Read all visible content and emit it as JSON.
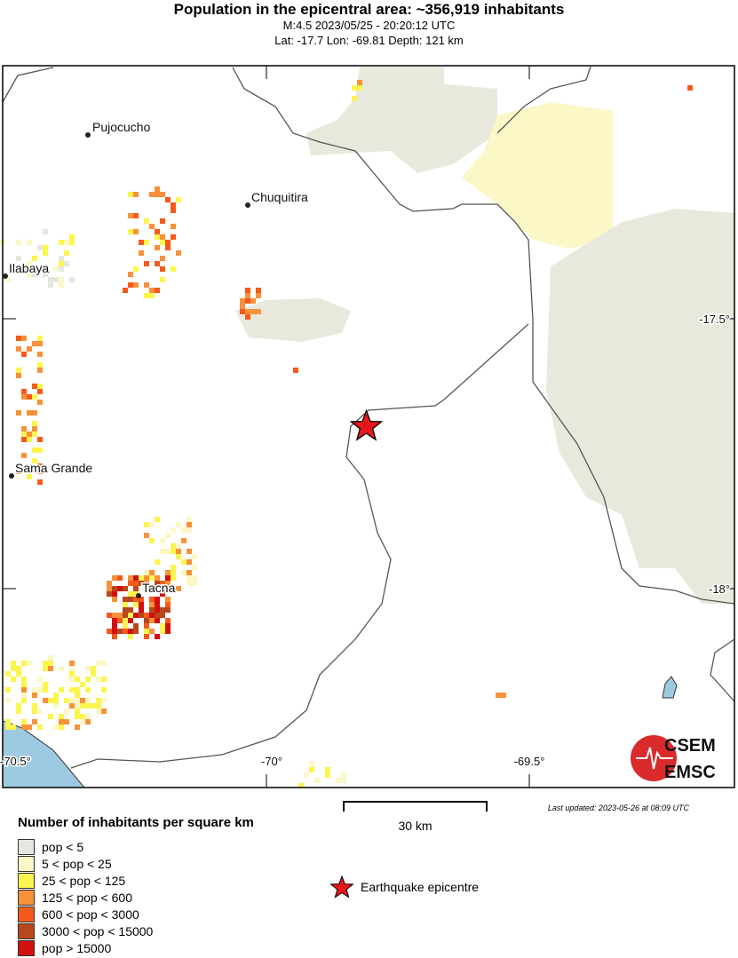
{
  "header": {
    "title": "Population in the epicentral area: ~356,919 inhabitants",
    "event_line": "M:4.5 2023/05/25 - 20:20:12 UTC",
    "location_line": "Lat: -17.7 Lon: -69.81 Depth: 121 km"
  },
  "map": {
    "cities": [
      "Pujocucho",
      "Chuquitira",
      "Ilabaya",
      "Sama Grande",
      "Tacna"
    ],
    "lat_ticks": [
      "-17.5°",
      "-18°"
    ],
    "lon_ticks": [
      "-70.5°",
      "-70°",
      "-69.5°"
    ],
    "epicentre": {
      "lat": -17.7,
      "lon": -69.81
    },
    "colors": {
      "land": "#ffffff",
      "sea": "#9ecae1",
      "low_pop": "#e8e8dc",
      "epicentre": "#e8161b"
    }
  },
  "scale_bar": {
    "label": "30 km"
  },
  "updated": "Last updated: 2023-05-26 at 08:09 UTC",
  "legend": {
    "title": "Number of inhabitants per square km",
    "items": [
      {
        "label": "pop < 5",
        "color": "#e6e6e1"
      },
      {
        "label": "5 < pop < 25",
        "color": "#fbf7c6"
      },
      {
        "label": "25 < pop < 125",
        "color": "#fbf550"
      },
      {
        "label": "125 < pop < 600",
        "color": "#f7923a"
      },
      {
        "label": "600 < pop < 3000",
        "color": "#f35a1c"
      },
      {
        "label": "3000 < pop < 15000",
        "color": "#b8481b"
      },
      {
        "label": "pop > 15000",
        "color": "#d40f0f"
      }
    ],
    "epicentre_label": "Earthquake epicentre"
  },
  "logo": {
    "top": "CSEM",
    "bottom": "EMSC"
  }
}
